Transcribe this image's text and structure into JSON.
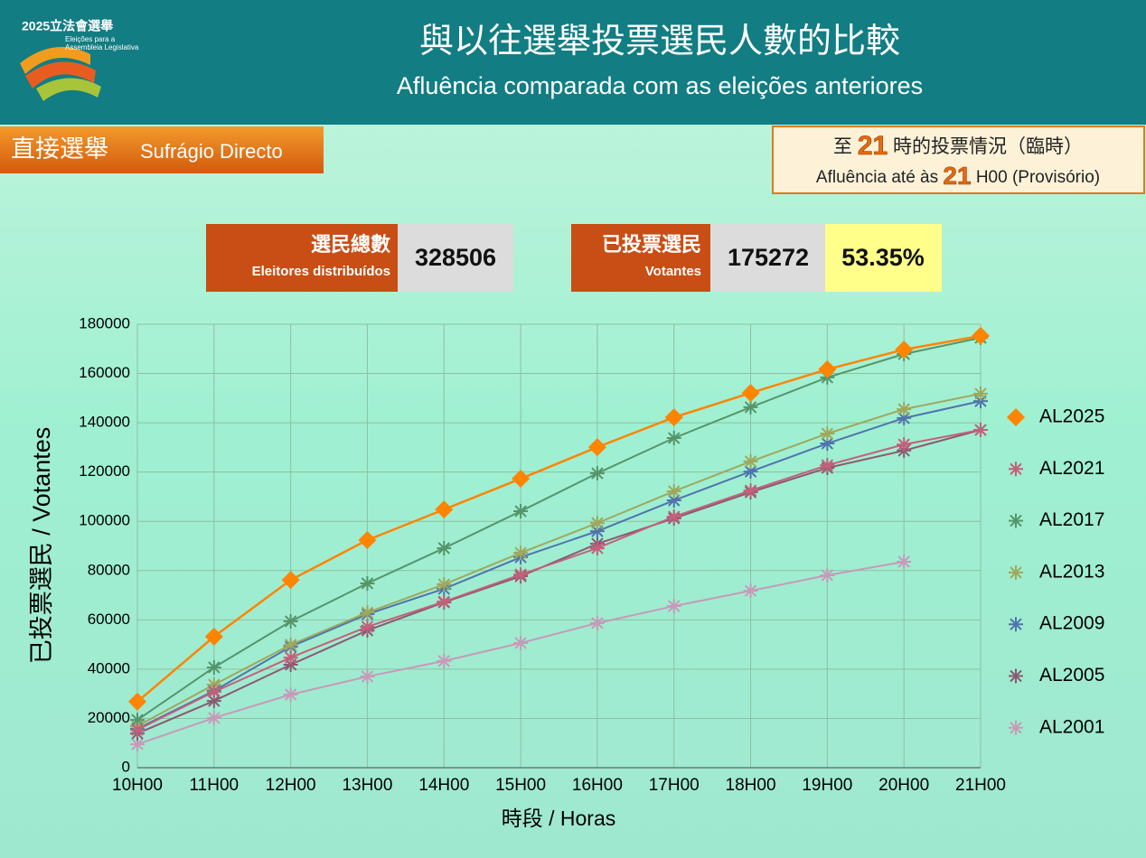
{
  "header": {
    "title": "與以往選舉投票選民人數的比較",
    "subtitle": "Afluência comparada com as eleições anteriores",
    "logo": {
      "year_text": "2025立法會選舉",
      "line1": "Eleições para a",
      "line2": "Assembleia Legislativa"
    }
  },
  "section_label": {
    "zh": "直接選舉",
    "pt": "Sufrágio Directo"
  },
  "status_box": {
    "line1": {
      "pre": "至",
      "hour": "21",
      "post": "時的投票情況（臨時）"
    },
    "line2": {
      "pre": "Afluência até às",
      "hour": "21",
      "post": "H00 (Provisório)"
    }
  },
  "stats": {
    "registered": {
      "zh": "選民總數",
      "pt": "Eleitores distribuídos",
      "value": "328506"
    },
    "voted": {
      "zh": "已投票選民",
      "pt": "Votantes",
      "value": "175272",
      "rate": "53.35%"
    }
  },
  "chart_data": {
    "type": "line",
    "y_label": "已投票選民 / Votantes",
    "x_label": "時段 / Horas",
    "categories": [
      "10H00",
      "11H00",
      "12H00",
      "13H00",
      "14H00",
      "15H00",
      "16H00",
      "17H00",
      "18H00",
      "19H00",
      "20H00",
      "21H00"
    ],
    "ylim": [
      0,
      180000
    ],
    "yticks": [
      0,
      20000,
      40000,
      60000,
      80000,
      100000,
      120000,
      140000,
      160000,
      180000
    ],
    "grid": true,
    "legend": "right",
    "series": [
      {
        "name": "AL2025",
        "color": "#ff8400",
        "marker": "diamond",
        "values": [
          26800,
          53200,
          76200,
          92400,
          104800,
          117300,
          130100,
          142200,
          152100,
          161700,
          169700,
          175272
        ]
      },
      {
        "name": "AL2021",
        "color": "#c4607a",
        "marker": "asterisk",
        "values": [
          15400,
          30800,
          44700,
          57200,
          67400,
          78400,
          89100,
          101900,
          112500,
          122800,
          131200,
          137100
        ]
      },
      {
        "name": "AL2017",
        "color": "#56956a",
        "marker": "asterisk",
        "values": [
          19400,
          40700,
          59400,
          74800,
          89100,
          104100,
          119500,
          133800,
          146300,
          158400,
          167900,
          174500
        ]
      },
      {
        "name": "AL2013",
        "color": "#9fa85c",
        "marker": "asterisk",
        "values": [
          16900,
          33700,
          49900,
          63000,
          74400,
          87200,
          99300,
          112200,
          124300,
          135600,
          145500,
          151800
        ]
      },
      {
        "name": "AL2009",
        "color": "#4f74ad",
        "marker": "asterisk",
        "values": [
          15800,
          31200,
          49100,
          62300,
          72600,
          85400,
          96000,
          108500,
          120200,
          131600,
          141900,
          148800
        ]
      },
      {
        "name": "AL2005",
        "color": "#8a5a72",
        "marker": "asterisk",
        "values": [
          13900,
          27100,
          41800,
          55700,
          67100,
          77700,
          90900,
          101200,
          111800,
          121700,
          128700,
          137100
        ]
      },
      {
        "name": "AL2001",
        "color": "#c79ab8",
        "marker": "asterisk",
        "values": [
          9500,
          20200,
          29700,
          37000,
          43300,
          50600,
          58700,
          65600,
          71800,
          78100,
          83600,
          null
        ]
      }
    ]
  }
}
